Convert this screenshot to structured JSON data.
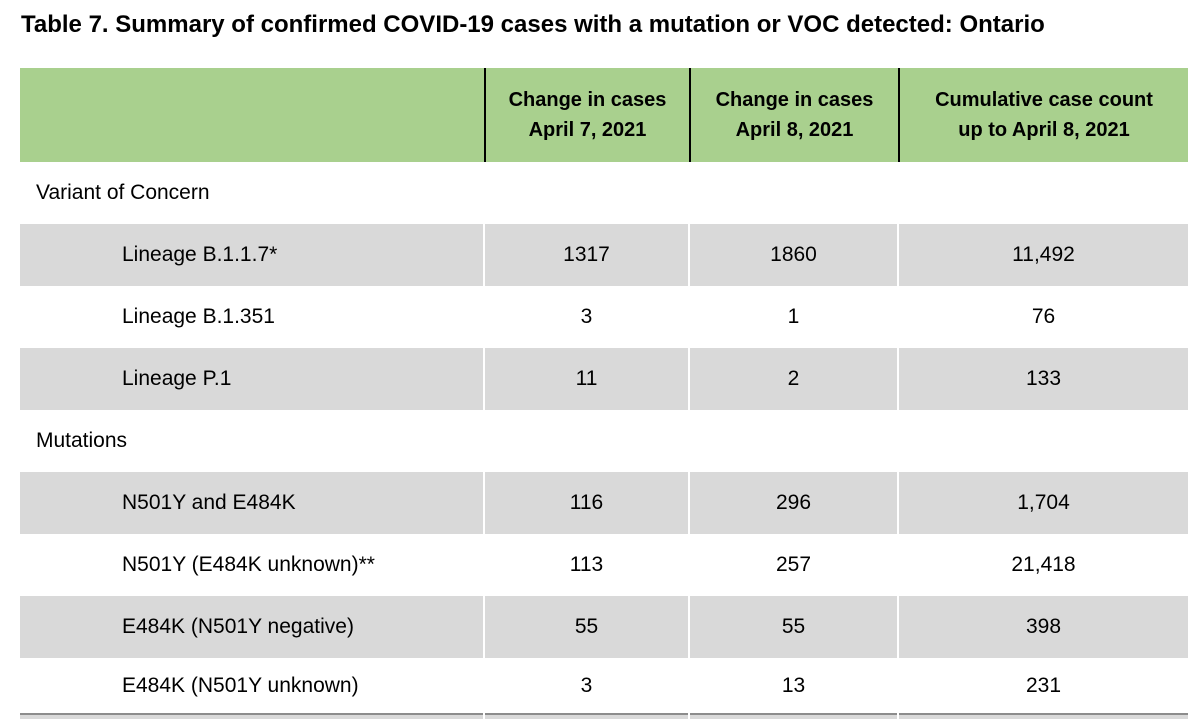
{
  "page_title": "Table 7. Summary of confirmed COVID-19 cases with a mutation or VOC detected: Ontario",
  "table": {
    "header": {
      "col_label": "",
      "col_apr7": "Change in cases\nApril 7, 2021",
      "col_apr8": "Change in cases\nApril 8, 2021",
      "col_cumulative": "Cumulative case count\nup to April 8, 2021"
    },
    "sections": [
      {
        "label": "Variant of Concern",
        "rows": [
          {
            "label": "Lineage B.1.1.7*",
            "apr7": "1317",
            "apr8": "1860",
            "cumulative": "11,492"
          },
          {
            "label": "Lineage B.1.351",
            "apr7": "3",
            "apr8": "1",
            "cumulative": "76"
          },
          {
            "label": "Lineage P.1",
            "apr7": "11",
            "apr8": "2",
            "cumulative": "133"
          }
        ]
      },
      {
        "label": "Mutations",
        "rows": [
          {
            "label": "N501Y and E484K",
            "apr7": "116",
            "apr8": "296",
            "cumulative": "1,704"
          },
          {
            "label": "N501Y (E484K unknown)**",
            "apr7": "113",
            "apr8": "257",
            "cumulative": "21,418"
          },
          {
            "label": "E484K (N501Y negative)",
            "apr7": "55",
            "apr8": "55",
            "cumulative": "398"
          },
          {
            "label": "E484K (N501Y unknown)",
            "apr7": "3",
            "apr8": "13",
            "cumulative": "231"
          }
        ]
      }
    ],
    "colors": {
      "header_bg": "#a9d08e",
      "row_shade": "#d9d9d9",
      "header_divider": "#000000",
      "bottom_strip_line": "#8c8c8c",
      "bottom_strip_fill": "#d9d9d9"
    }
  }
}
